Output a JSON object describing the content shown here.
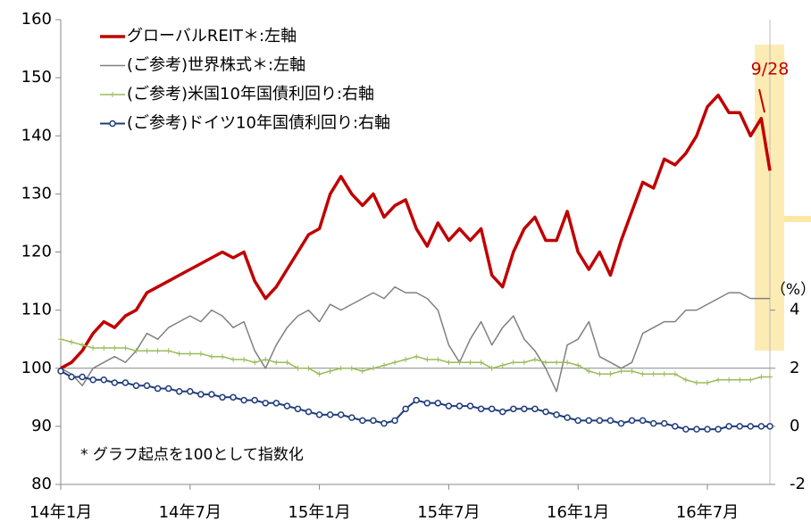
{
  "chart_data": {
    "type": "line",
    "x": [
      0,
      0.5,
      1,
      1.5,
      2,
      2.5,
      3,
      3.5,
      4,
      4.5,
      5,
      5.5,
      6,
      6.5,
      7,
      7.5,
      8,
      8.5,
      9,
      9.5,
      10,
      10.5,
      11,
      11.5,
      12,
      12.5,
      13,
      13.5,
      14,
      14.5,
      15,
      15.5,
      16,
      16.5,
      17,
      17.5,
      18,
      18.5,
      19,
      19.5,
      20,
      20.5,
      21,
      21.5,
      22,
      22.5,
      23,
      23.5,
      24,
      24.5,
      25,
      25.5,
      26,
      26.5,
      27,
      27.5,
      28,
      28.5,
      29,
      29.5,
      30,
      30.5,
      31,
      31.5,
      32,
      32.5,
      32.9
    ],
    "xlim": [
      0,
      32.9
    ],
    "xticks": [
      {
        "value": 0,
        "label": "14年1月"
      },
      {
        "value": 6,
        "label": "14年7月"
      },
      {
        "value": 12,
        "label": "15年1月"
      },
      {
        "value": 18,
        "label": "15年7月"
      },
      {
        "value": 24,
        "label": "16年1月"
      },
      {
        "value": 30,
        "label": "16年7月"
      }
    ],
    "ylim": [
      80,
      160
    ],
    "yticks": [
      80,
      90,
      100,
      110,
      120,
      130,
      140,
      150,
      160
    ],
    "y2lim": [
      -2,
      14
    ],
    "y2ticks": [
      -2,
      0,
      2,
      4
    ],
    "y2_unit": "（%）",
    "reference_line": 100,
    "annotation": "9/28",
    "note": "* グラフ起点を100として指数化",
    "series": [
      {
        "name": "グローバルREIT＊:左軸",
        "color": "#c00000",
        "marker": "none",
        "values": [
          100,
          101,
          103,
          106,
          108,
          107,
          109,
          110,
          113,
          114,
          115,
          116,
          117,
          118,
          119,
          120,
          119,
          120,
          115,
          112,
          114,
          117,
          120,
          123,
          124,
          130,
          133,
          130,
          128,
          130,
          126,
          128,
          129,
          124,
          121,
          125,
          122,
          124,
          122,
          124,
          116,
          114,
          120,
          124,
          126,
          122,
          122,
          127,
          120,
          117,
          120,
          116,
          122,
          127,
          132,
          131,
          136,
          135,
          137,
          140,
          145,
          147,
          144,
          144,
          140,
          143,
          134
        ]
      },
      {
        "name": "(ご参考)世界株式＊:左軸",
        "color": "#808080",
        "marker": "none",
        "values": [
          100,
          99,
          97,
          100,
          101,
          102,
          101,
          103,
          106,
          105,
          107,
          108,
          109,
          108,
          110,
          109,
          107,
          108,
          103,
          100,
          104,
          107,
          109,
          110,
          108,
          111,
          110,
          111,
          112,
          113,
          112,
          114,
          113,
          113,
          112,
          110,
          104,
          101,
          105,
          108,
          104,
          107,
          109,
          105,
          103,
          100,
          96,
          104,
          105,
          108,
          102,
          101,
          100,
          101,
          106,
          107,
          108,
          108,
          110,
          110,
          111,
          112,
          113,
          113,
          112,
          112,
          112
        ]
      },
      {
        "name": "(ご参考)米国10年国債利回り:右軸",
        "color": "#9bbb59",
        "marker": "plus",
        "axis": "y2",
        "values": [
          3.0,
          2.9,
          2.8,
          2.7,
          2.7,
          2.7,
          2.7,
          2.6,
          2.6,
          2.6,
          2.6,
          2.5,
          2.5,
          2.5,
          2.4,
          2.4,
          2.3,
          2.3,
          2.2,
          2.3,
          2.2,
          2.2,
          2.0,
          2.0,
          1.8,
          1.9,
          2.0,
          2.0,
          1.9,
          2.0,
          2.1,
          2.2,
          2.3,
          2.4,
          2.3,
          2.3,
          2.2,
          2.2,
          2.2,
          2.2,
          2.0,
          2.1,
          2.2,
          2.2,
          2.3,
          2.2,
          2.2,
          2.2,
          2.1,
          1.9,
          1.8,
          1.8,
          1.9,
          1.9,
          1.8,
          1.8,
          1.8,
          1.8,
          1.6,
          1.5,
          1.5,
          1.6,
          1.6,
          1.6,
          1.6,
          1.7,
          1.7
        ]
      },
      {
        "name": "(ご参考)ドイツ10年国債利回り:右軸",
        "color": "#1f3d7a",
        "marker": "circle",
        "axis": "y2",
        "values": [
          1.9,
          1.7,
          1.7,
          1.6,
          1.6,
          1.5,
          1.5,
          1.4,
          1.4,
          1.3,
          1.3,
          1.2,
          1.2,
          1.1,
          1.1,
          1.0,
          1.0,
          0.9,
          0.9,
          0.8,
          0.8,
          0.7,
          0.6,
          0.5,
          0.4,
          0.4,
          0.4,
          0.3,
          0.2,
          0.2,
          0.1,
          0.2,
          0.6,
          0.9,
          0.8,
          0.8,
          0.7,
          0.7,
          0.7,
          0.6,
          0.6,
          0.5,
          0.6,
          0.6,
          0.6,
          0.5,
          0.4,
          0.3,
          0.2,
          0.2,
          0.2,
          0.2,
          0.1,
          0.2,
          0.2,
          0.1,
          0.1,
          0.0,
          -0.1,
          -0.1,
          -0.1,
          -0.1,
          0.0,
          0.0,
          0.0,
          0.0,
          0.0
        ]
      }
    ]
  }
}
